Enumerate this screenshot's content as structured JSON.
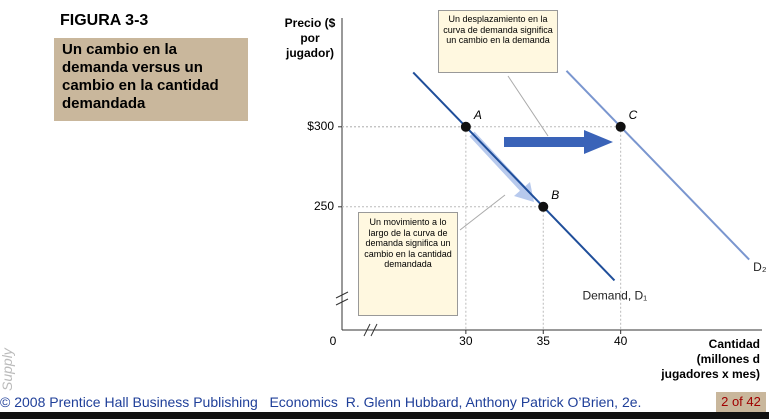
{
  "figure_label": "FIGURA 3-3",
  "caption": "Un cambio en la demanda versus un cambio en la cantidad demandada",
  "chart_data": {
    "type": "line",
    "y_label": "Precio ($ por jugador)",
    "x_label": "Cantidad (millones d jugadores x mes)",
    "origin_label": "0",
    "xlim": [
      22,
      49
    ],
    "ylim": [
      173,
      368
    ],
    "xticks": [
      30,
      35,
      40
    ],
    "yticks": [
      250,
      {
        "value": 300,
        "label": "$300"
      }
    ],
    "series": [
      {
        "name": "Demand, D₁",
        "color": "#1f4e9a",
        "x": [
          26.6,
          39.6
        ],
        "values": [
          334,
          204
        ]
      },
      {
        "name": "D₂",
        "color": "#7a96cf",
        "x": [
          36.5,
          48.3
        ],
        "values": [
          335,
          217
        ]
      }
    ],
    "points": [
      {
        "label": "A",
        "x": 30,
        "y": 300
      },
      {
        "label": "B",
        "x": 35,
        "y": 250
      },
      {
        "label": "C",
        "x": 40,
        "y": 300
      }
    ],
    "annotations": [
      "Un desplazamiento en la curva de demanda significa un cambio en la demanda",
      "Un movimiento a lo largo de la curva de demanda significa un cambio en la cantidad demandada"
    ]
  },
  "sidebar_label": "Supply",
  "footer": {
    "credit": "© 2008 Prentice Hall Business Publishing   Economics  R. Glenn Hubbard, Anthony Patrick O’Brien, 2e.",
    "page": "2 of 42"
  }
}
